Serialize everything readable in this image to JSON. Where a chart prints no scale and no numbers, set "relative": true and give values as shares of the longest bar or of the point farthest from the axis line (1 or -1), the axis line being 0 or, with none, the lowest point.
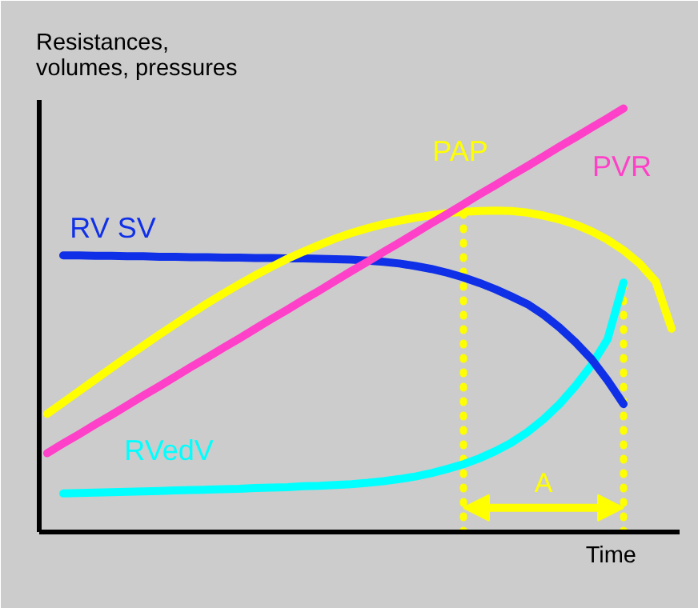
{
  "chart_data": {
    "type": "line",
    "relative": true,
    "xlabel": "Time",
    "ylabel": "Resistances,\nvolumes, pressures",
    "categories": [
      null,
      null,
      null,
      null,
      null,
      null,
      null,
      null,
      null,
      null,
      null,
      null,
      null,
      null,
      null,
      null,
      null,
      null,
      null,
      null,
      null,
      null,
      null,
      null,
      null,
      null,
      null,
      null,
      null,
      null,
      null,
      null,
      null,
      null,
      null,
      null,
      null,
      null,
      null,
      null
    ],
    "series": [
      {
        "name": "RVedV",
        "color": "#00ffff",
        "values": [
          null,
          0.091,
          0.092,
          0.093,
          0.094,
          0.095,
          0.096,
          0.097,
          0.098,
          0.099,
          0.1,
          0.101,
          0.102,
          0.104,
          0.105,
          0.106,
          0.108,
          0.109,
          0.111,
          0.113,
          0.116,
          0.12,
          0.125,
          0.131,
          0.139,
          0.149,
          0.16,
          0.174,
          0.191,
          0.211,
          0.236,
          0.266,
          0.302,
          0.345,
          0.394,
          0.455,
          0.589,
          null,
          null,
          null
        ]
      },
      {
        "name": "RV SV",
        "color": "#1030e8",
        "values": [
          null,
          0.653,
          0.653,
          0.652,
          0.652,
          0.651,
          0.651,
          0.65,
          0.65,
          0.649,
          0.649,
          0.648,
          0.648,
          0.647,
          0.647,
          0.646,
          0.646,
          0.645,
          0.644,
          0.643,
          0.641,
          0.638,
          0.634,
          0.628,
          0.621,
          0.612,
          0.601,
          0.588,
          0.573,
          0.556,
          0.538,
          0.513,
          0.483,
          0.448,
          0.408,
          0.358,
          0.302,
          null,
          null,
          null
        ]
      },
      {
        "name": "PAP",
        "color": "#ffff00",
        "values": [
          0.279,
          0.306,
          0.333,
          0.36,
          0.387,
          0.414,
          0.44,
          0.466,
          0.491,
          0.516,
          0.54,
          0.563,
          0.585,
          0.606,
          0.626,
          0.645,
          0.662,
          0.678,
          0.693,
          0.706,
          0.717,
          0.727,
          0.735,
          0.742,
          0.748,
          0.753,
          0.756,
          0.758,
          0.759,
          0.758,
          0.754,
          0.747,
          0.738,
          0.726,
          0.71,
          0.69,
          0.665,
          0.634,
          0.592,
          0.48
        ]
      },
      {
        "name": "PVR",
        "color": "#ff40c8",
        "values": [
          0.186,
          0.209,
          0.231,
          0.254,
          0.276,
          0.299,
          0.322,
          0.344,
          0.367,
          0.39,
          0.412,
          0.435,
          0.457,
          0.48,
          0.503,
          0.525,
          0.548,
          0.57,
          0.593,
          0.616,
          0.638,
          0.661,
          0.683,
          0.706,
          0.729,
          0.751,
          0.774,
          0.797,
          0.819,
          0.842,
          0.864,
          0.887,
          0.91,
          0.932,
          0.955,
          0.977,
          1,
          null,
          null,
          null
        ]
      }
    ],
    "annotations": [
      "A"
    ]
  }
}
